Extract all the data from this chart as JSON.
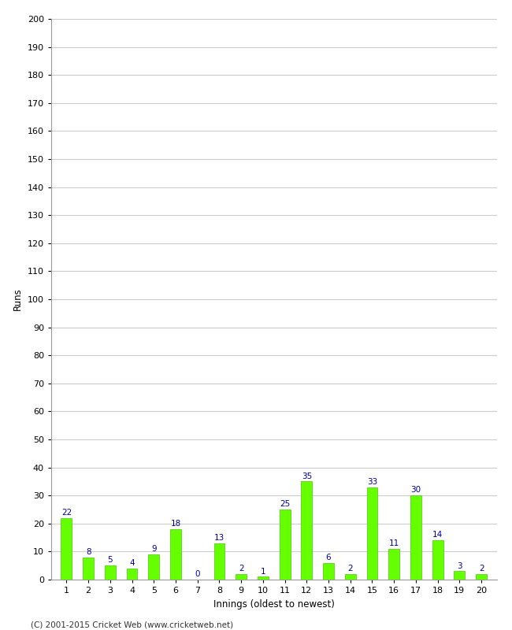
{
  "title": "",
  "xlabel": "Innings (oldest to newest)",
  "ylabel": "Runs",
  "categories": [
    "1",
    "2",
    "3",
    "4",
    "5",
    "6",
    "7",
    "8",
    "9",
    "10",
    "11",
    "12",
    "13",
    "14",
    "15",
    "16",
    "17",
    "18",
    "19",
    "20"
  ],
  "values": [
    22,
    8,
    5,
    4,
    9,
    18,
    0,
    13,
    2,
    1,
    25,
    35,
    6,
    2,
    33,
    11,
    30,
    14,
    3,
    2
  ],
  "bar_color": "#66ff00",
  "bar_edge_color": "#44cc00",
  "label_color": "#000099",
  "ylim": [
    0,
    200
  ],
  "ytick_interval": 10,
  "background_color": "#ffffff",
  "grid_color": "#cccccc",
  "footer": "(C) 2001-2015 Cricket Web (www.cricketweb.net)"
}
